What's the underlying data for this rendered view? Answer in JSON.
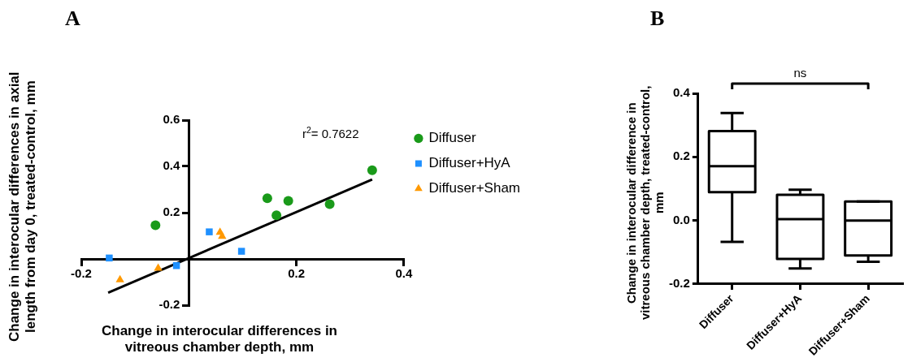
{
  "chart_data": [
    {
      "type": "scatter",
      "title": "A",
      "xlabel": "Change in interocular differences in vitreous chamber depth, mm",
      "ylabel": "Change in interocular differences in axial length from day 0, treated-control, mm",
      "xlim": [
        -0.2,
        0.4
      ],
      "xticks": [
        -0.2,
        0.2,
        0.4
      ],
      "ylim": [
        -0.2,
        0.6
      ],
      "yticks": [
        -0.2,
        0.2,
        0.4,
        0.6
      ],
      "grid": false,
      "legend": "right",
      "annotations": [
        "r$^{2}$= 0.7622"
      ],
      "series": [
        {
          "name": "Diffuser",
          "color": "#1a9a1a",
          "marker": "circle",
          "x": [
            -0.062,
            0.146,
            0.185,
            0.163,
            0.262,
            0.341
          ],
          "values": [
            0.146,
            0.262,
            0.251,
            0.189,
            0.237,
            0.383
          ]
        },
        {
          "name": "Diffuser+HyA",
          "color": "#1e90ff",
          "marker": "square",
          "x": [
            -0.148,
            0.038,
            0.098,
            -0.023
          ],
          "values": [
            0.004,
            0.117,
            0.033,
            -0.029
          ]
        },
        {
          "name": "Diffuser+Sham",
          "color": "#ff9900",
          "marker": "triangle",
          "x": [
            -0.128,
            -0.057,
            0.058,
            0.062
          ],
          "values": [
            -0.09,
            -0.04,
            0.115,
            0.097
          ]
        },
        {
          "type": "line",
          "color": "#000000",
          "marker": "none",
          "x": [
            -0.15,
            0.341
          ],
          "values": [
            -0.146,
            0.343
          ]
        }
      ]
    },
    {
      "type": "box",
      "title": "B",
      "ylabel": "Change in interocular difference in vitreous chamber depth, treated-control, mm",
      "categories": [
        "Diffuser",
        "Diffuser+HyA",
        "Diffuser+Sham"
      ],
      "ylim": [
        -0.2,
        0.4
      ],
      "yticks": [
        -0.2,
        {
          "value": 0,
          "label": "0.0"
        },
        0.2,
        0.4
      ],
      "grid": false,
      "annotations": [
        "ns"
      ],
      "boxes": [
        {
          "low": -0.067,
          "q1": 0.089,
          "median": 0.171,
          "q3": 0.281,
          "high": 0.338
        },
        {
          "low": -0.151,
          "q1": -0.121,
          "median": 0.004,
          "q3": 0.081,
          "high": 0.097
        },
        {
          "low": -0.13,
          "q1": -0.11,
          "median": 0.0,
          "q3": 0.06,
          "high": 0.06
        }
      ]
    }
  ]
}
